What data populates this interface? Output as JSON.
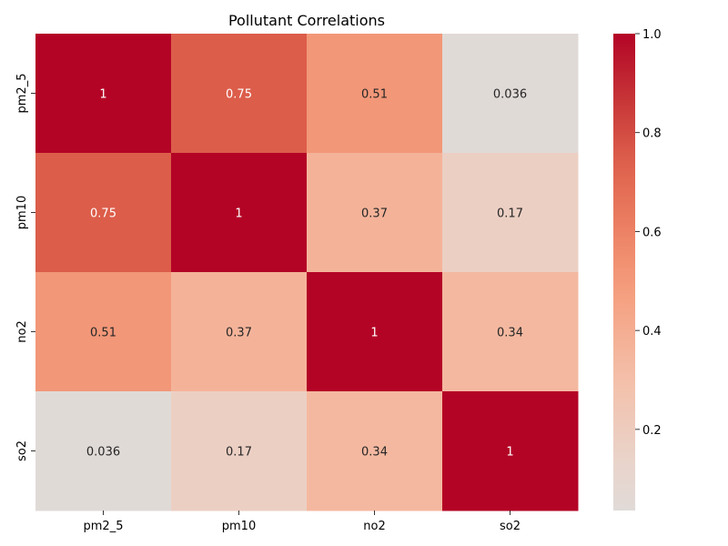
{
  "chart_data": {
    "type": "heatmap",
    "title": "Pollutant Correlations",
    "xlabel": "",
    "ylabel": "",
    "x_categories": [
      "pm2_5",
      "pm10",
      "no2",
      "so2"
    ],
    "y_categories": [
      "pm2_5",
      "pm10",
      "no2",
      "so2"
    ],
    "values": [
      [
        1,
        0.75,
        0.51,
        0.036
      ],
      [
        0.75,
        1,
        0.37,
        0.17
      ],
      [
        0.51,
        0.37,
        1,
        0.34
      ],
      [
        0.036,
        0.17,
        0.34,
        1
      ]
    ],
    "annotations": [
      [
        "1",
        "0.75",
        "0.51",
        "0.036"
      ],
      [
        "0.75",
        "1",
        "0.37",
        "0.17"
      ],
      [
        "0.51",
        "0.37",
        "1",
        "0.34"
      ],
      [
        "0.036",
        "0.17",
        "0.34",
        "1"
      ]
    ],
    "colormap": "coolwarm",
    "colorbar": {
      "range": [
        0.036,
        1.0
      ],
      "ticks": [
        0.2,
        0.4,
        0.6,
        0.8,
        1.0
      ],
      "tick_labels": [
        "0.2",
        "0.4",
        "0.6",
        "0.8",
        "1.0"
      ]
    }
  }
}
